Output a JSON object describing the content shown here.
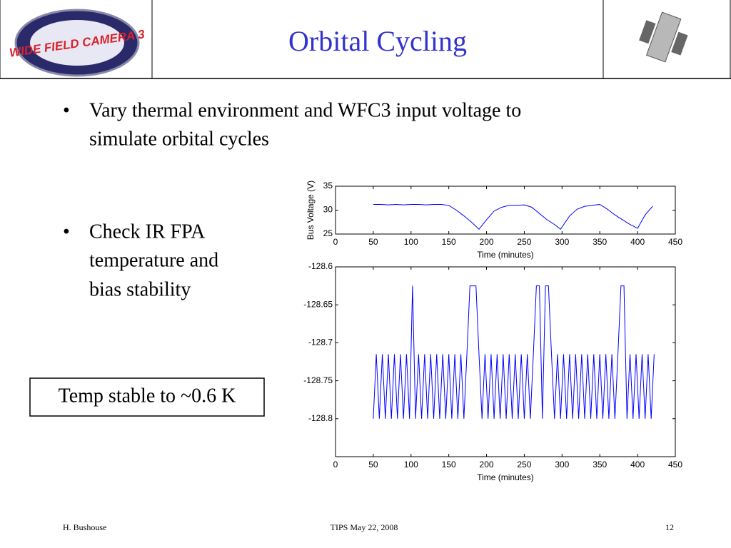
{
  "header": {
    "title": "Orbital Cycling",
    "logo_text": "WIDE FIELD CAMERA 3"
  },
  "bullets": [
    [
      "Vary thermal environment and WFC3 input voltage to",
      "simulate orbital cycles"
    ],
    [
      "Check IR FPA",
      "temperature and",
      "bias stability"
    ]
  ],
  "callout": "Temp stable to ~0.6 K",
  "footer": {
    "left": "H. Bushouse",
    "center": "TIPS May 22, 2008",
    "right": "12"
  },
  "chart_data": [
    {
      "type": "line",
      "ylabel": "Bus Voltage (V)",
      "xlabel": "Time (minutes)",
      "color": "#0000ff",
      "x": [
        50,
        60,
        70,
        80,
        90,
        100,
        110,
        120,
        130,
        140,
        150,
        160,
        170,
        180,
        190,
        200,
        210,
        220,
        230,
        240,
        250,
        260,
        270,
        280,
        290,
        298,
        310,
        320,
        330,
        340,
        350,
        360,
        370,
        380,
        390,
        400,
        410,
        420
      ],
      "values": [
        31.2,
        31.2,
        31.1,
        31.2,
        31.1,
        31.2,
        31.2,
        31.1,
        31.2,
        31.2,
        31.0,
        30.0,
        28.8,
        27.5,
        26.0,
        28.0,
        29.8,
        30.6,
        31.0,
        31.0,
        31.1,
        30.6,
        29.3,
        28.0,
        27.0,
        26.0,
        28.8,
        30.2,
        30.8,
        31.0,
        31.2,
        30.2,
        29.0,
        28.0,
        27.0,
        26.2,
        29.0,
        30.8
      ],
      "xlim": [
        0,
        450
      ],
      "xticks": [
        0,
        50,
        100,
        150,
        200,
        250,
        300,
        350,
        400,
        450
      ],
      "ylim": [
        25,
        35
      ],
      "yticks": [
        25,
        30,
        35
      ]
    },
    {
      "type": "line",
      "xlabel": "Time (minutes)",
      "color": "#0000ff",
      "x": [
        50,
        54,
        58,
        62,
        66,
        70,
        74,
        78,
        82,
        86,
        90,
        94,
        98,
        102,
        106,
        110,
        114,
        118,
        122,
        126,
        130,
        134,
        138,
        142,
        146,
        150,
        154,
        158,
        162,
        166,
        170,
        174,
        178,
        182,
        186,
        190,
        194,
        198,
        202,
        206,
        210,
        214,
        218,
        222,
        226,
        230,
        234,
        238,
        242,
        246,
        250,
        254,
        258,
        262,
        266,
        270,
        274,
        278,
        282,
        286,
        290,
        294,
        298,
        302,
        306,
        310,
        314,
        318,
        322,
        326,
        330,
        334,
        338,
        342,
        346,
        350,
        354,
        358,
        362,
        366,
        370,
        374,
        378,
        382,
        386,
        390,
        394,
        398,
        402,
        406,
        410,
        414,
        418,
        422
      ],
      "values": [
        -128.8,
        -128.715,
        -128.8,
        -128.715,
        -128.8,
        -128.715,
        -128.8,
        -128.715,
        -128.8,
        -128.715,
        -128.8,
        -128.715,
        -128.8,
        -128.625,
        -128.8,
        -128.715,
        -128.8,
        -128.715,
        -128.8,
        -128.715,
        -128.8,
        -128.715,
        -128.8,
        -128.715,
        -128.8,
        -128.715,
        -128.8,
        -128.715,
        -128.8,
        -128.715,
        -128.8,
        -128.715,
        -128.625,
        -128.625,
        -128.625,
        -128.715,
        -128.8,
        -128.715,
        -128.8,
        -128.715,
        -128.8,
        -128.715,
        -128.8,
        -128.715,
        -128.8,
        -128.715,
        -128.8,
        -128.715,
        -128.8,
        -128.715,
        -128.8,
        -128.715,
        -128.8,
        -128.715,
        -128.625,
        -128.625,
        -128.8,
        -128.625,
        -128.625,
        -128.715,
        -128.8,
        -128.715,
        -128.8,
        -128.715,
        -128.8,
        -128.715,
        -128.8,
        -128.715,
        -128.8,
        -128.715,
        -128.8,
        -128.715,
        -128.8,
        -128.715,
        -128.8,
        -128.715,
        -128.8,
        -128.715,
        -128.8,
        -128.715,
        -128.8,
        -128.715,
        -128.625,
        -128.625,
        -128.8,
        -128.715,
        -128.8,
        -128.715,
        -128.8,
        -128.715,
        -128.8,
        -128.715,
        -128.8,
        -128.715
      ],
      "xlim": [
        0,
        450
      ],
      "xticks": [
        0,
        50,
        100,
        150,
        200,
        250,
        300,
        350,
        400,
        450
      ],
      "ylim": [
        -128.85,
        -128.6
      ],
      "yticks": [
        -128.6,
        -128.65,
        -128.7,
        -128.75,
        -128.8
      ]
    }
  ]
}
